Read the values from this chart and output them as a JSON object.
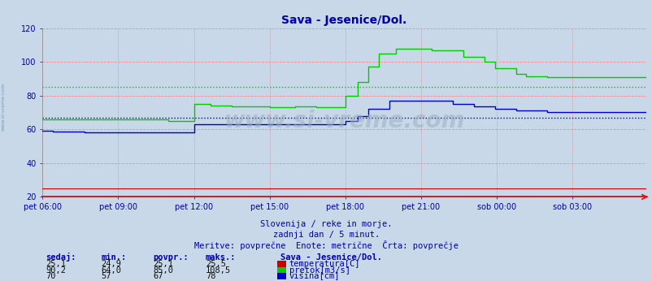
{
  "title": "Sava - Jesenice/Dol.",
  "bg_color": "#c8d8e8",
  "plot_bg_color": "#c8d8e8",
  "text_color": "#0000aa",
  "subtitle1": "Slovenija / reke in morje.",
  "subtitle2": "zadnji dan / 5 minut.",
  "subtitle3": "Meritve: povprečne  Enote: metrične  Črta: povprečje",
  "legend_title": "Sava - Jesenice/Dol.",
  "legend_items": [
    "temperatura[C]",
    "pretok[m3/s]",
    "višina[cm]"
  ],
  "legend_colors": [
    "#cc0000",
    "#00cc00",
    "#0000cc"
  ],
  "table_headers": [
    "sedaj:",
    "min.:",
    "povpr.:",
    "maks.:"
  ],
  "table_data": [
    [
      "25,1",
      "24,9",
      "25,1",
      "25,5"
    ],
    [
      "90,2",
      "64,0",
      "85,0",
      "108,5"
    ],
    [
      "70",
      "57",
      "67",
      "78"
    ]
  ],
  "xlabels": [
    "pet 06:00",
    "pet 09:00",
    "pet 12:00",
    "pet 15:00",
    "pet 18:00",
    "pet 21:00",
    "sob 00:00",
    "sob 03:00"
  ],
  "xtick_positions": [
    0,
    36,
    72,
    108,
    144,
    180,
    216,
    252
  ],
  "ylim": [
    20,
    120
  ],
  "yticks": [
    20,
    40,
    60,
    80,
    100,
    120
  ],
  "avg_green": 85.0,
  "avg_blue": 67.0,
  "n_points": 288,
  "temp_color": "#cc0000",
  "flow_color": "#00cc00",
  "height_color": "#0000cc",
  "watermark": "www.si-vreme.com"
}
